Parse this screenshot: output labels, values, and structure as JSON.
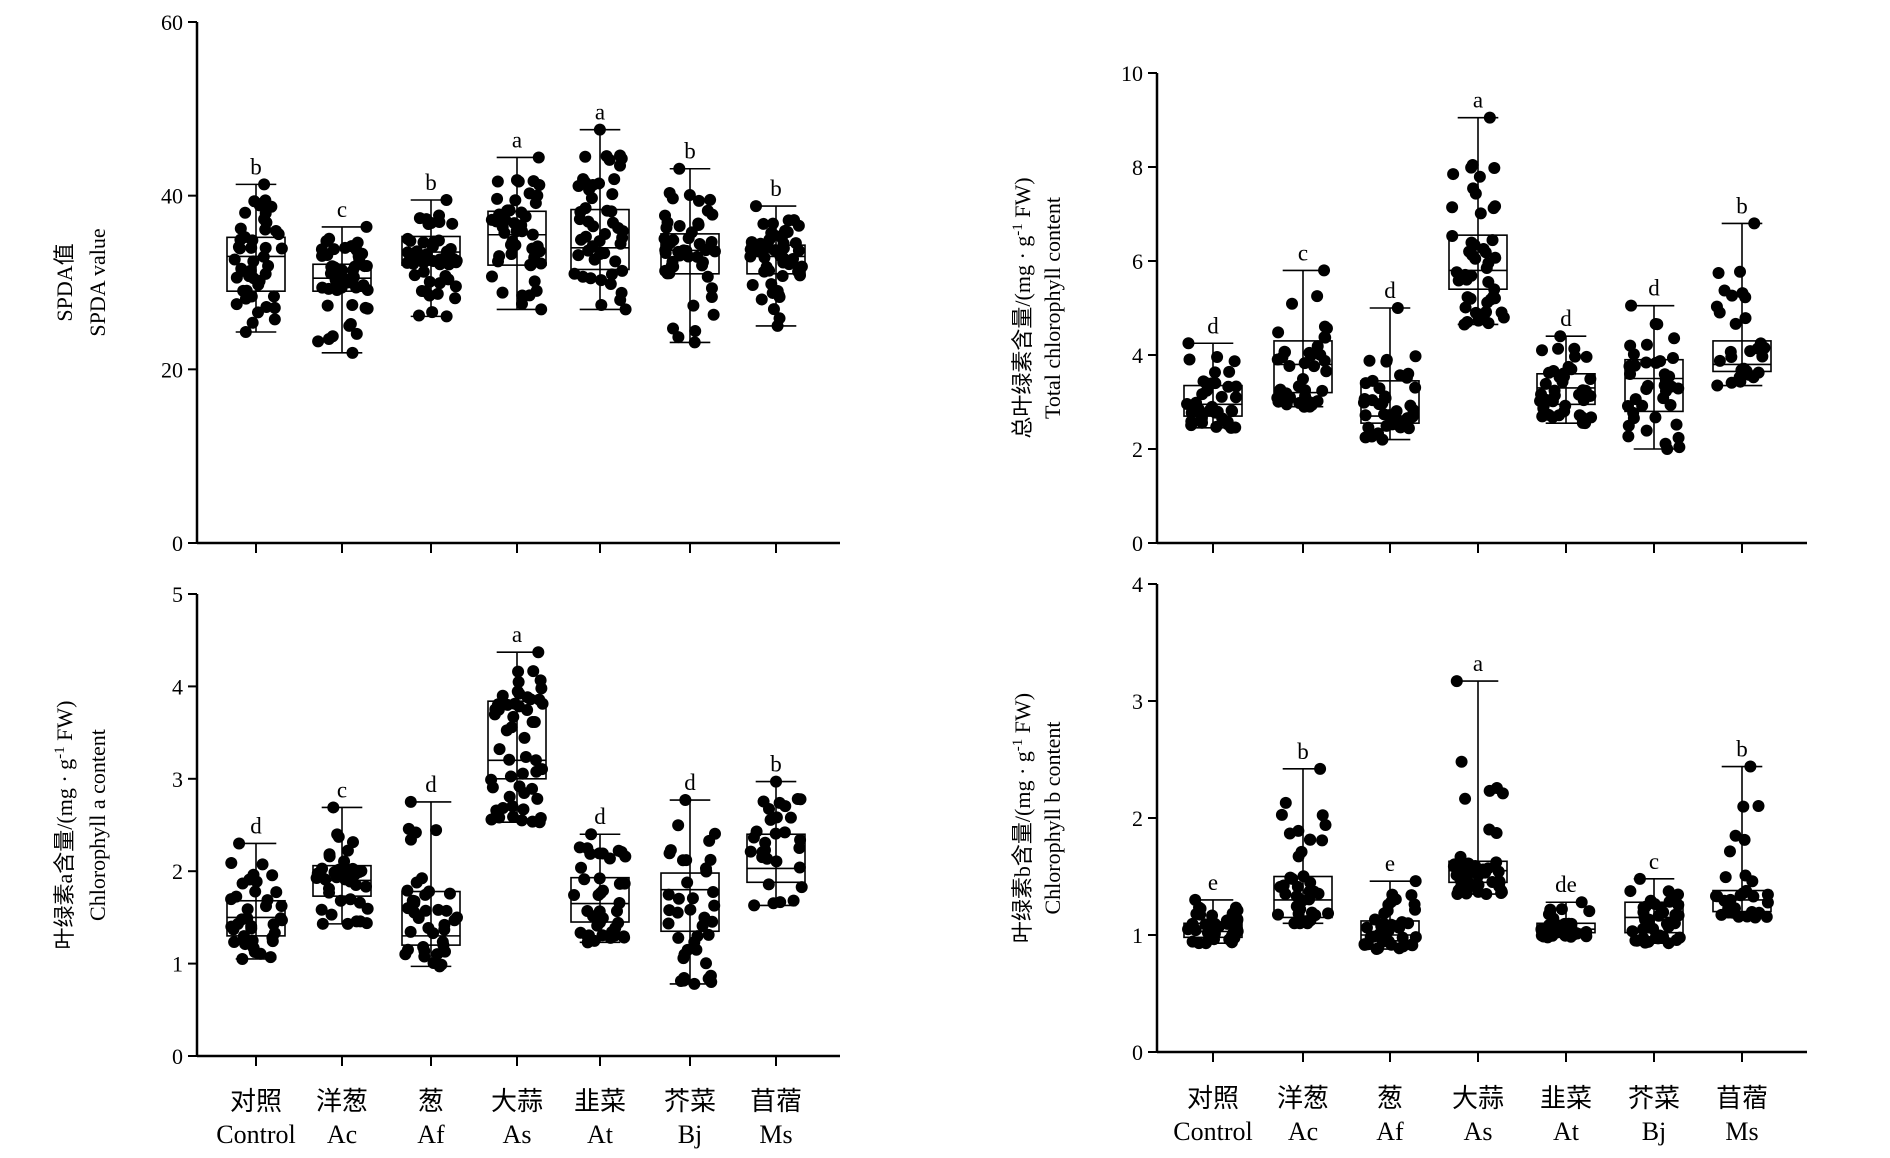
{
  "categories": [
    {
      "zh": "对照",
      "en": "Control"
    },
    {
      "zh": "洋葱",
      "en": "Ac"
    },
    {
      "zh": "葱",
      "en": "Af"
    },
    {
      "zh": "大蒜",
      "en": "As"
    },
    {
      "zh": "韭菜",
      "en": "At"
    },
    {
      "zh": "芥菜",
      "en": "Bj"
    },
    {
      "zh": "苜蓿",
      "en": "Ms"
    }
  ],
  "chart_data": [
    {
      "type": "box",
      "ylabel_zh": "SPDA值",
      "ylabel_en": "SPDA value",
      "ylim": [
        0,
        60
      ],
      "yticks": [
        0,
        20,
        40,
        60
      ],
      "boxes": [
        {
          "min": 24.3,
          "q1": 29.0,
          "median": 33.0,
          "q3": 35.2,
          "max": 41.3,
          "letter": "b",
          "n": 50
        },
        {
          "min": 21.9,
          "q1": 29.0,
          "median": 30.5,
          "q3": 32.1,
          "max": 36.4,
          "letter": "c",
          "n": 50
        },
        {
          "min": 26.1,
          "q1": 32.0,
          "median": 33.5,
          "q3": 35.3,
          "max": 39.5,
          "letter": "b",
          "n": 50
        },
        {
          "min": 26.9,
          "q1": 32.0,
          "median": 35.5,
          "q3": 38.2,
          "max": 44.4,
          "letter": "a",
          "n": 50
        },
        {
          "min": 26.9,
          "q1": 31.5,
          "median": 34.0,
          "q3": 38.4,
          "max": 47.6,
          "letter": "a",
          "n": 50
        },
        {
          "min": 23.1,
          "q1": 31.0,
          "median": 33.7,
          "q3": 35.6,
          "max": 43.1,
          "letter": "b",
          "n": 50
        },
        {
          "min": 25.0,
          "q1": 31.0,
          "median": 33.0,
          "q3": 34.3,
          "max": 38.8,
          "letter": "b",
          "n": 50
        }
      ]
    },
    {
      "type": "box",
      "ylabel_zh": "总叶绿素含量/(mg · g",
      "ylabel_sup": "-1",
      "ylabel_tail": " FW)",
      "ylabel_en": "Total chlorophyll content",
      "ylim": [
        0,
        10
      ],
      "yticks": [
        0,
        2,
        4,
        6,
        8,
        10
      ],
      "boxes": [
        {
          "min": 2.45,
          "q1": 2.7,
          "median": 2.95,
          "q3": 3.35,
          "max": 4.25,
          "letter": "d",
          "n": 40
        },
        {
          "min": 2.9,
          "q1": 3.2,
          "median": 3.8,
          "q3": 4.3,
          "max": 5.8,
          "letter": "c",
          "n": 40
        },
        {
          "min": 2.2,
          "q1": 2.55,
          "median": 2.7,
          "q3": 3.45,
          "max": 5.0,
          "letter": "d",
          "n": 40
        },
        {
          "min": 4.65,
          "q1": 5.4,
          "median": 5.8,
          "q3": 6.55,
          "max": 9.05,
          "letter": "a",
          "n": 50
        },
        {
          "min": 2.55,
          "q1": 2.95,
          "median": 3.3,
          "q3": 3.6,
          "max": 4.4,
          "letter": "d",
          "n": 40
        },
        {
          "min": 2.0,
          "q1": 2.8,
          "median": 3.5,
          "q3": 3.9,
          "max": 5.05,
          "letter": "d",
          "n": 40
        },
        {
          "min": 3.35,
          "q1": 3.65,
          "median": 3.8,
          "q3": 4.3,
          "max": 6.8,
          "letter": "b",
          "n": 30
        }
      ]
    },
    {
      "type": "box",
      "ylabel_zh": "叶绿素a含量/(mg · g",
      "ylabel_sup": "-1",
      "ylabel_tail": " FW)",
      "ylabel_en": "Chlorophyll a content",
      "ylim": [
        0,
        5
      ],
      "yticks": [
        0,
        1,
        2,
        3,
        4,
        5
      ],
      "boxes": [
        {
          "min": 1.05,
          "q1": 1.3,
          "median": 1.5,
          "q3": 1.68,
          "max": 2.3,
          "letter": "d",
          "n": 40
        },
        {
          "min": 1.43,
          "q1": 1.73,
          "median": 1.9,
          "q3": 2.06,
          "max": 2.69,
          "letter": "c",
          "n": 40
        },
        {
          "min": 0.97,
          "q1": 1.2,
          "median": 1.3,
          "q3": 1.78,
          "max": 2.75,
          "letter": "d",
          "n": 40
        },
        {
          "min": 2.53,
          "q1": 3.0,
          "median": 3.2,
          "q3": 3.84,
          "max": 4.37,
          "letter": "a",
          "n": 55
        },
        {
          "min": 1.23,
          "q1": 1.45,
          "median": 1.65,
          "q3": 1.93,
          "max": 2.4,
          "letter": "d",
          "n": 40
        },
        {
          "min": 0.78,
          "q1": 1.35,
          "median": 1.8,
          "q3": 1.98,
          "max": 2.77,
          "letter": "d",
          "n": 40
        },
        {
          "min": 1.63,
          "q1": 1.88,
          "median": 2.03,
          "q3": 2.4,
          "max": 2.97,
          "letter": "b",
          "n": 30
        }
      ]
    },
    {
      "type": "box",
      "ylabel_zh": "叶绿素b含量/(mg · g",
      "ylabel_sup": "-1",
      "ylabel_tail": " FW)",
      "ylabel_en": "Chlorophyll b content",
      "ylim": [
        0,
        4
      ],
      "yticks": [
        0,
        1,
        2,
        3,
        4
      ],
      "boxes": [
        {
          "min": 0.93,
          "q1": 0.98,
          "median": 1.03,
          "q3": 1.1,
          "max": 1.3,
          "letter": "e",
          "n": 40
        },
        {
          "min": 1.1,
          "q1": 1.15,
          "median": 1.3,
          "q3": 1.5,
          "max": 2.42,
          "letter": "b",
          "n": 40
        },
        {
          "min": 0.88,
          "q1": 0.95,
          "median": 1.0,
          "q3": 1.12,
          "max": 1.46,
          "letter": "e",
          "n": 40
        },
        {
          "min": 1.35,
          "q1": 1.45,
          "median": 1.55,
          "q3": 1.63,
          "max": 3.17,
          "letter": "a",
          "n": 50
        },
        {
          "min": 0.98,
          "q1": 1.02,
          "median": 1.05,
          "q3": 1.1,
          "max": 1.28,
          "letter": "de",
          "n": 40
        },
        {
          "min": 0.93,
          "q1": 1.02,
          "median": 1.15,
          "q3": 1.28,
          "max": 1.48,
          "letter": "c",
          "n": 40
        },
        {
          "min": 1.15,
          "q1": 1.2,
          "median": 1.3,
          "q3": 1.38,
          "max": 2.44,
          "letter": "b",
          "n": 30
        }
      ]
    }
  ]
}
